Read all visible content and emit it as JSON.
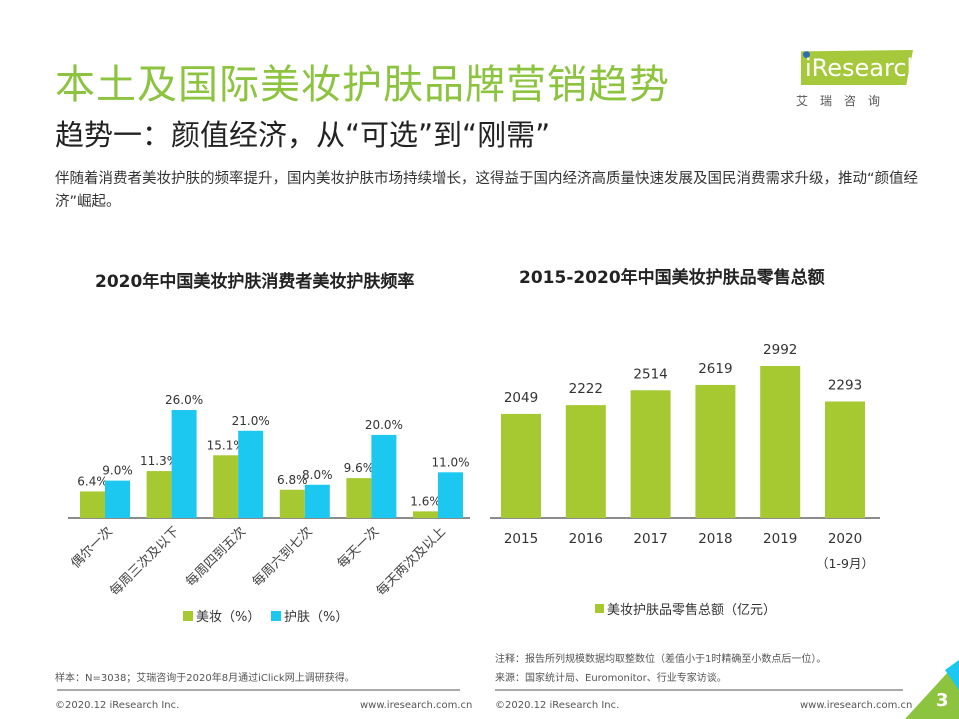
{
  "title": "本土及国际美妆护肤品牌营销趋势",
  "subtitle": "趋势一：颜值经济，从“可选”到“刚需”",
  "description": "伴随着消费者美妆护肤的频率提升，国内美妆护肤市场持续增长，这得益于国内经济高质量快速发展及国民消费需求升级，推动“颜值经济”崛起。",
  "logo": {
    "text": "iResearch",
    "cn": "艾瑞咨询"
  },
  "chart_data": [
    {
      "type": "bar",
      "title": "2020年中国美妆护肤消费者美妆护肤频率",
      "categories": [
        "偶尔一次",
        "每周三次及以下",
        "每周四到五次",
        "每周六到七次",
        "每天一次",
        "每天两次及以上"
      ],
      "series": [
        {
          "name": "美妆（%）",
          "color": "#a6c931",
          "values": [
            6.4,
            11.3,
            15.1,
            6.8,
            9.6,
            1.6
          ]
        },
        {
          "name": "护肤（%）",
          "color": "#1dc8f0",
          "values": [
            9.0,
            26.0,
            21.0,
            8.0,
            20.0,
            11.0
          ]
        }
      ],
      "data_labels": [
        [
          "6.4%",
          "11.3%",
          "15.1%",
          "6.8%",
          "9.6%",
          "1.6%"
        ],
        [
          "9.0%",
          "26.0%",
          "21.0%",
          "8.0%",
          "20.0%",
          "11.0%"
        ]
      ],
      "legend": "bottom",
      "ylim": [
        0,
        28
      ],
      "grid": false
    },
    {
      "type": "bar",
      "title": "2015-2020年中国美妆护肤品零售总额",
      "categories": [
        "2015",
        "2016",
        "2017",
        "2018",
        "2019",
        "2020"
      ],
      "category_sublabels": [
        "",
        "",
        "",
        "",
        "",
        "（1-9月）"
      ],
      "series": [
        {
          "name": "美妆护肤品零售总额（亿元）",
          "color": "#a6c931",
          "values": [
            2049,
            2222,
            2514,
            2619,
            2992,
            2293
          ]
        }
      ],
      "legend": "bottom",
      "ylim": [
        0,
        3200
      ],
      "grid": false
    }
  ],
  "notes": {
    "sample": "样本：N=3038；艾瑞咨询于2020年8月通过iClick网上调研获得。",
    "note": "注释：报告所列规模数据均取整数位（差值小于1时精确至小数点后一位）。",
    "source": "来源：国家统计局、Euromonitor、行业专家访谈。"
  },
  "footer": {
    "copyright": "©2020.12 iResearch Inc.",
    "url": "www.iresearch.com.cn",
    "page": "3"
  }
}
